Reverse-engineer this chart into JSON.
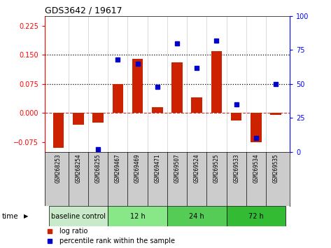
{
  "title": "GDS3642 / 19617",
  "samples": [
    "GSM268253",
    "GSM268254",
    "GSM268255",
    "GSM269467",
    "GSM269469",
    "GSM269471",
    "GSM269507",
    "GSM269524",
    "GSM269525",
    "GSM269533",
    "GSM269534",
    "GSM269535"
  ],
  "log_ratio": [
    -0.09,
    -0.03,
    -0.025,
    0.075,
    0.14,
    0.015,
    0.13,
    0.04,
    0.16,
    -0.02,
    -0.075,
    -0.005
  ],
  "percentile_rank": [
    null,
    null,
    2,
    68,
    65,
    48,
    80,
    62,
    82,
    35,
    10,
    50
  ],
  "ylim_left": [
    -0.1,
    0.25
  ],
  "ylim_right": [
    0,
    100
  ],
  "yticks_left": [
    -0.075,
    0,
    0.075,
    0.15,
    0.225
  ],
  "yticks_right": [
    0,
    25,
    50,
    75,
    100
  ],
  "hlines_dotted": [
    0.075,
    0.15
  ],
  "hline_dashed_val": 0,
  "groups": [
    {
      "label": "baseline control",
      "start": 0,
      "end": 3,
      "color": "#c8eac8"
    },
    {
      "label": "12 h",
      "start": 3,
      "end": 6,
      "color": "#88e888"
    },
    {
      "label": "24 h",
      "start": 6,
      "end": 9,
      "color": "#55cc55"
    },
    {
      "label": "72 h",
      "start": 9,
      "end": 12,
      "color": "#33bb33"
    }
  ],
  "bar_color": "#cc2200",
  "dot_color": "#0000cc",
  "bg_samples": "#cccccc",
  "bar_width": 0.55,
  "legend_items": [
    "log ratio",
    "percentile rank within the sample"
  ],
  "time_label": "time"
}
